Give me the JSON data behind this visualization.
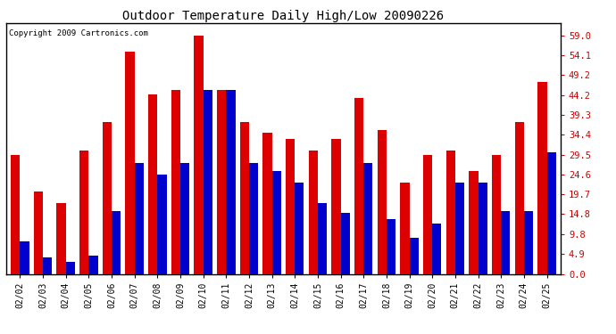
{
  "title": "Outdoor Temperature Daily High/Low 20090226",
  "copyright": "Copyright 2009 Cartronics.com",
  "dates": [
    "02/02",
    "02/03",
    "02/04",
    "02/05",
    "02/06",
    "02/07",
    "02/08",
    "02/09",
    "02/10",
    "02/11",
    "02/12",
    "02/13",
    "02/14",
    "02/15",
    "02/16",
    "02/17",
    "02/18",
    "02/19",
    "02/20",
    "02/21",
    "02/22",
    "02/23",
    "02/24",
    "02/25"
  ],
  "highs": [
    29.5,
    20.5,
    17.5,
    30.5,
    37.5,
    55.0,
    44.5,
    45.5,
    59.0,
    45.5,
    37.5,
    35.0,
    33.5,
    30.5,
    33.5,
    43.5,
    35.5,
    22.5,
    29.5,
    30.5,
    25.5,
    29.5,
    37.5,
    47.5
  ],
  "lows": [
    8.0,
    4.0,
    3.0,
    4.5,
    15.5,
    27.5,
    24.5,
    27.5,
    45.5,
    45.5,
    27.5,
    25.5,
    22.5,
    17.5,
    15.0,
    27.5,
    13.5,
    9.0,
    12.5,
    22.5,
    22.5,
    15.5,
    15.5,
    30.0
  ],
  "high_color": "#dd0000",
  "low_color": "#0000cc",
  "bg_color": "#ffffff",
  "grid_color": "#bbbbbb",
  "yticks": [
    0.0,
    4.9,
    9.8,
    14.8,
    19.7,
    24.6,
    29.5,
    34.4,
    39.3,
    44.2,
    49.2,
    54.1,
    59.0
  ],
  "ylim": [
    0.0,
    62.0
  ],
  "bar_width": 0.4,
  "title_fontsize": 10,
  "tick_fontsize": 7,
  "ytick_fontsize": 7.5
}
